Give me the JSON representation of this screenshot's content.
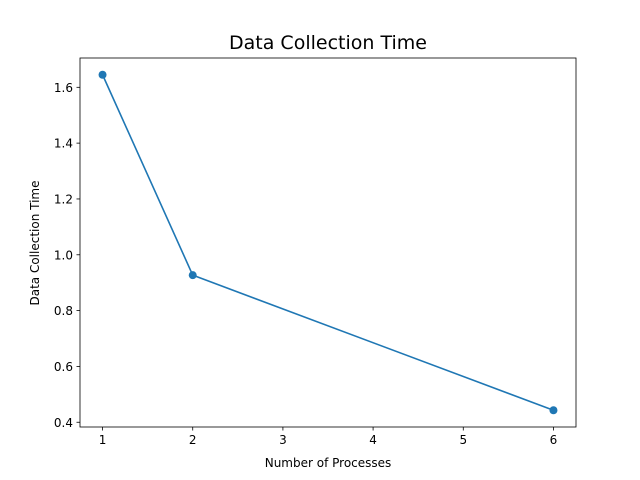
{
  "chart_data": {
    "type": "line",
    "title": "Data Collection Time",
    "xlabel": "Number of Processes",
    "ylabel": "Data Collection Time",
    "x": [
      1,
      2,
      6
    ],
    "series": [
      {
        "values": [
          1.645,
          0.927,
          0.443
        ],
        "color": "#1f77b4",
        "marker": "circle"
      }
    ],
    "xlim": [
      0.75,
      6.25
    ],
    "ylim": [
      0.383,
      1.705
    ],
    "xticks": [
      1,
      2,
      3,
      4,
      5,
      6
    ],
    "xtick_labels": [
      "1",
      "2",
      "3",
      "4",
      "5",
      "6"
    ],
    "yticks": [
      0.4,
      0.6,
      0.8,
      1.0,
      1.2,
      1.4,
      1.6
    ],
    "ytick_labels": [
      "0.4",
      "0.6",
      "0.8",
      "1.0",
      "1.2",
      "1.4",
      "1.6"
    ],
    "grid": false,
    "legend": false
  }
}
